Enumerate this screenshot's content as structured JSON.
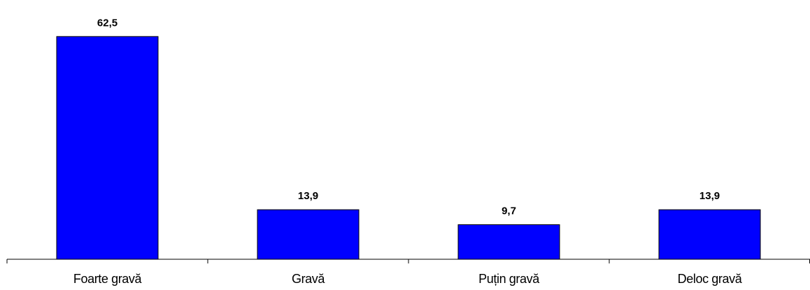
{
  "chart_data": {
    "type": "bar",
    "categories": [
      "Foarte gravă",
      "Gravă",
      "Puțin gravă",
      "Deloc gravă"
    ],
    "values": [
      62.5,
      13.9,
      9.7,
      13.9
    ],
    "value_labels": [
      "62,5",
      "13,9",
      "9,7",
      "13,9"
    ],
    "title": "",
    "xlabel": "",
    "ylabel": "",
    "ylim": [
      0,
      70
    ],
    "grid": false,
    "colors": {
      "bar_fill": "#0000ff",
      "bar_stroke": "#000000"
    }
  }
}
